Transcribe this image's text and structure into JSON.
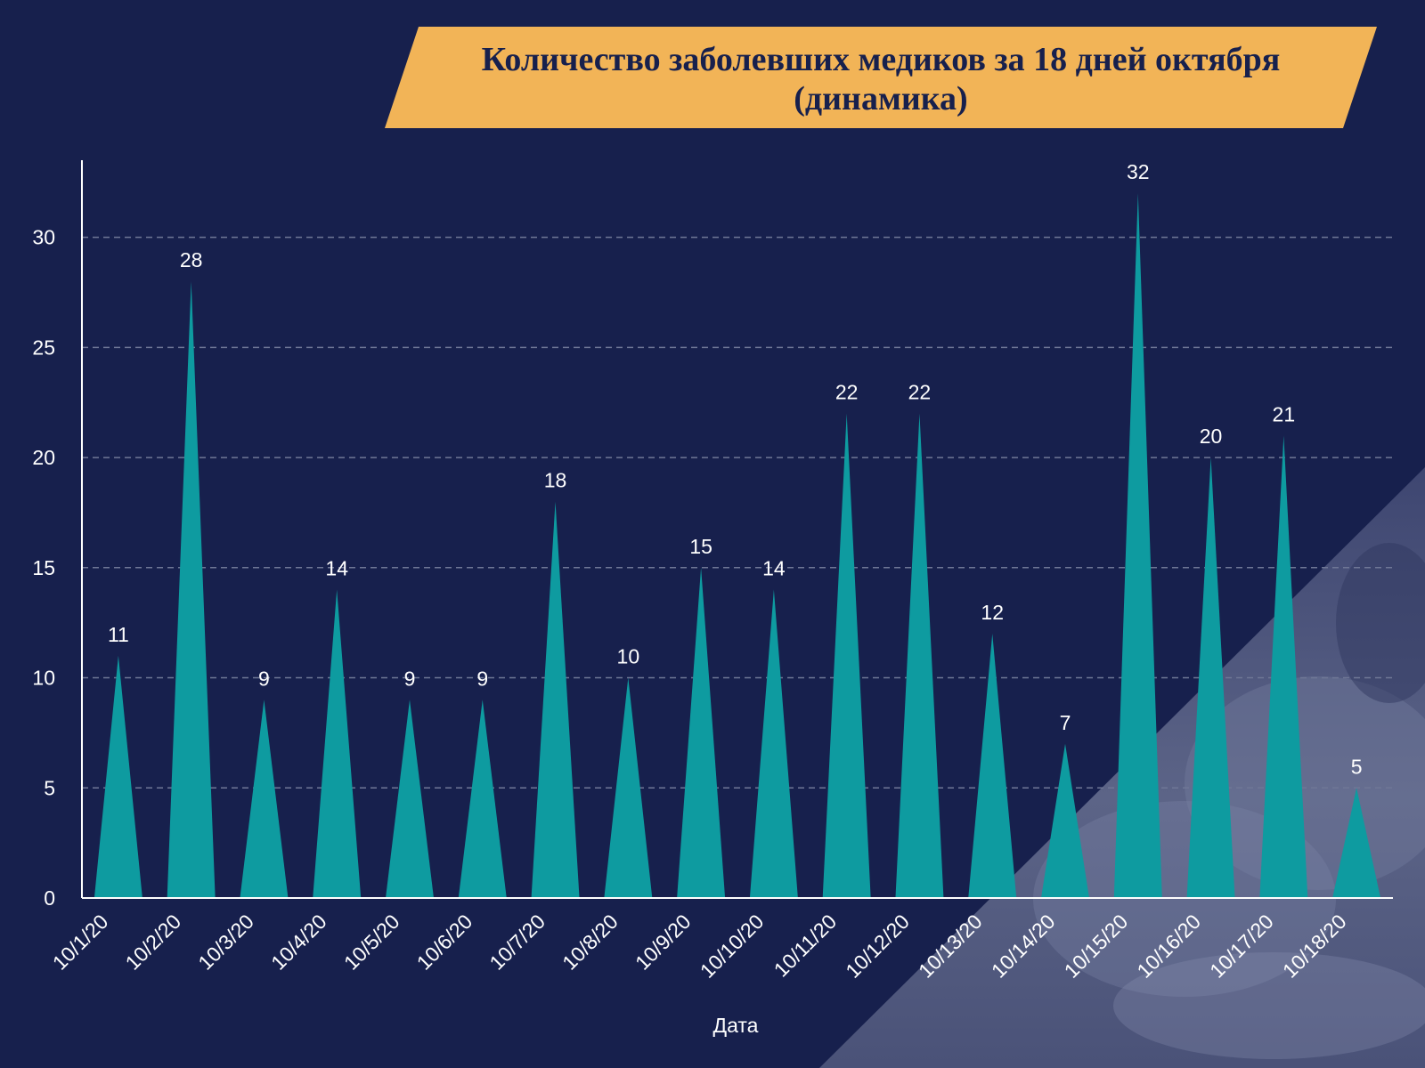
{
  "colors": {
    "background": "#17204d",
    "banner": "#f2b457",
    "title_text": "#17204d",
    "bar": "#0e9ba0",
    "axis": "#ffffff",
    "grid": "#6f7796",
    "label": "#ffffff",
    "photo_overlay": "#5a6283"
  },
  "title": "Количество заболевших медиков за 18 дней октября (динамика)",
  "chart_data": {
    "type": "bar",
    "bar_shape": "triangle",
    "title": "Количество заболевших медиков за 18 дней октября (динамика)",
    "xlabel": "Дата",
    "ylabel": "",
    "ylim": [
      0,
      33.5
    ],
    "yticks": [
      0,
      5,
      10,
      15,
      20,
      25,
      30
    ],
    "grid": "horizontal-dashed",
    "legend": "none",
    "categories": [
      "10/1/20",
      "10/2/20",
      "10/3/20",
      "10/4/20",
      "10/5/20",
      "10/6/20",
      "10/7/20",
      "10/8/20",
      "10/9/20",
      "10/10/20",
      "10/11/20",
      "10/12/20",
      "10/13/20",
      "10/14/20",
      "10/15/20",
      "10/16/20",
      "10/17/20",
      "10/18/20"
    ],
    "values": [
      11,
      28,
      9,
      14,
      9,
      9,
      18,
      10,
      15,
      14,
      22,
      22,
      12,
      7,
      32,
      20,
      21,
      5
    ]
  }
}
